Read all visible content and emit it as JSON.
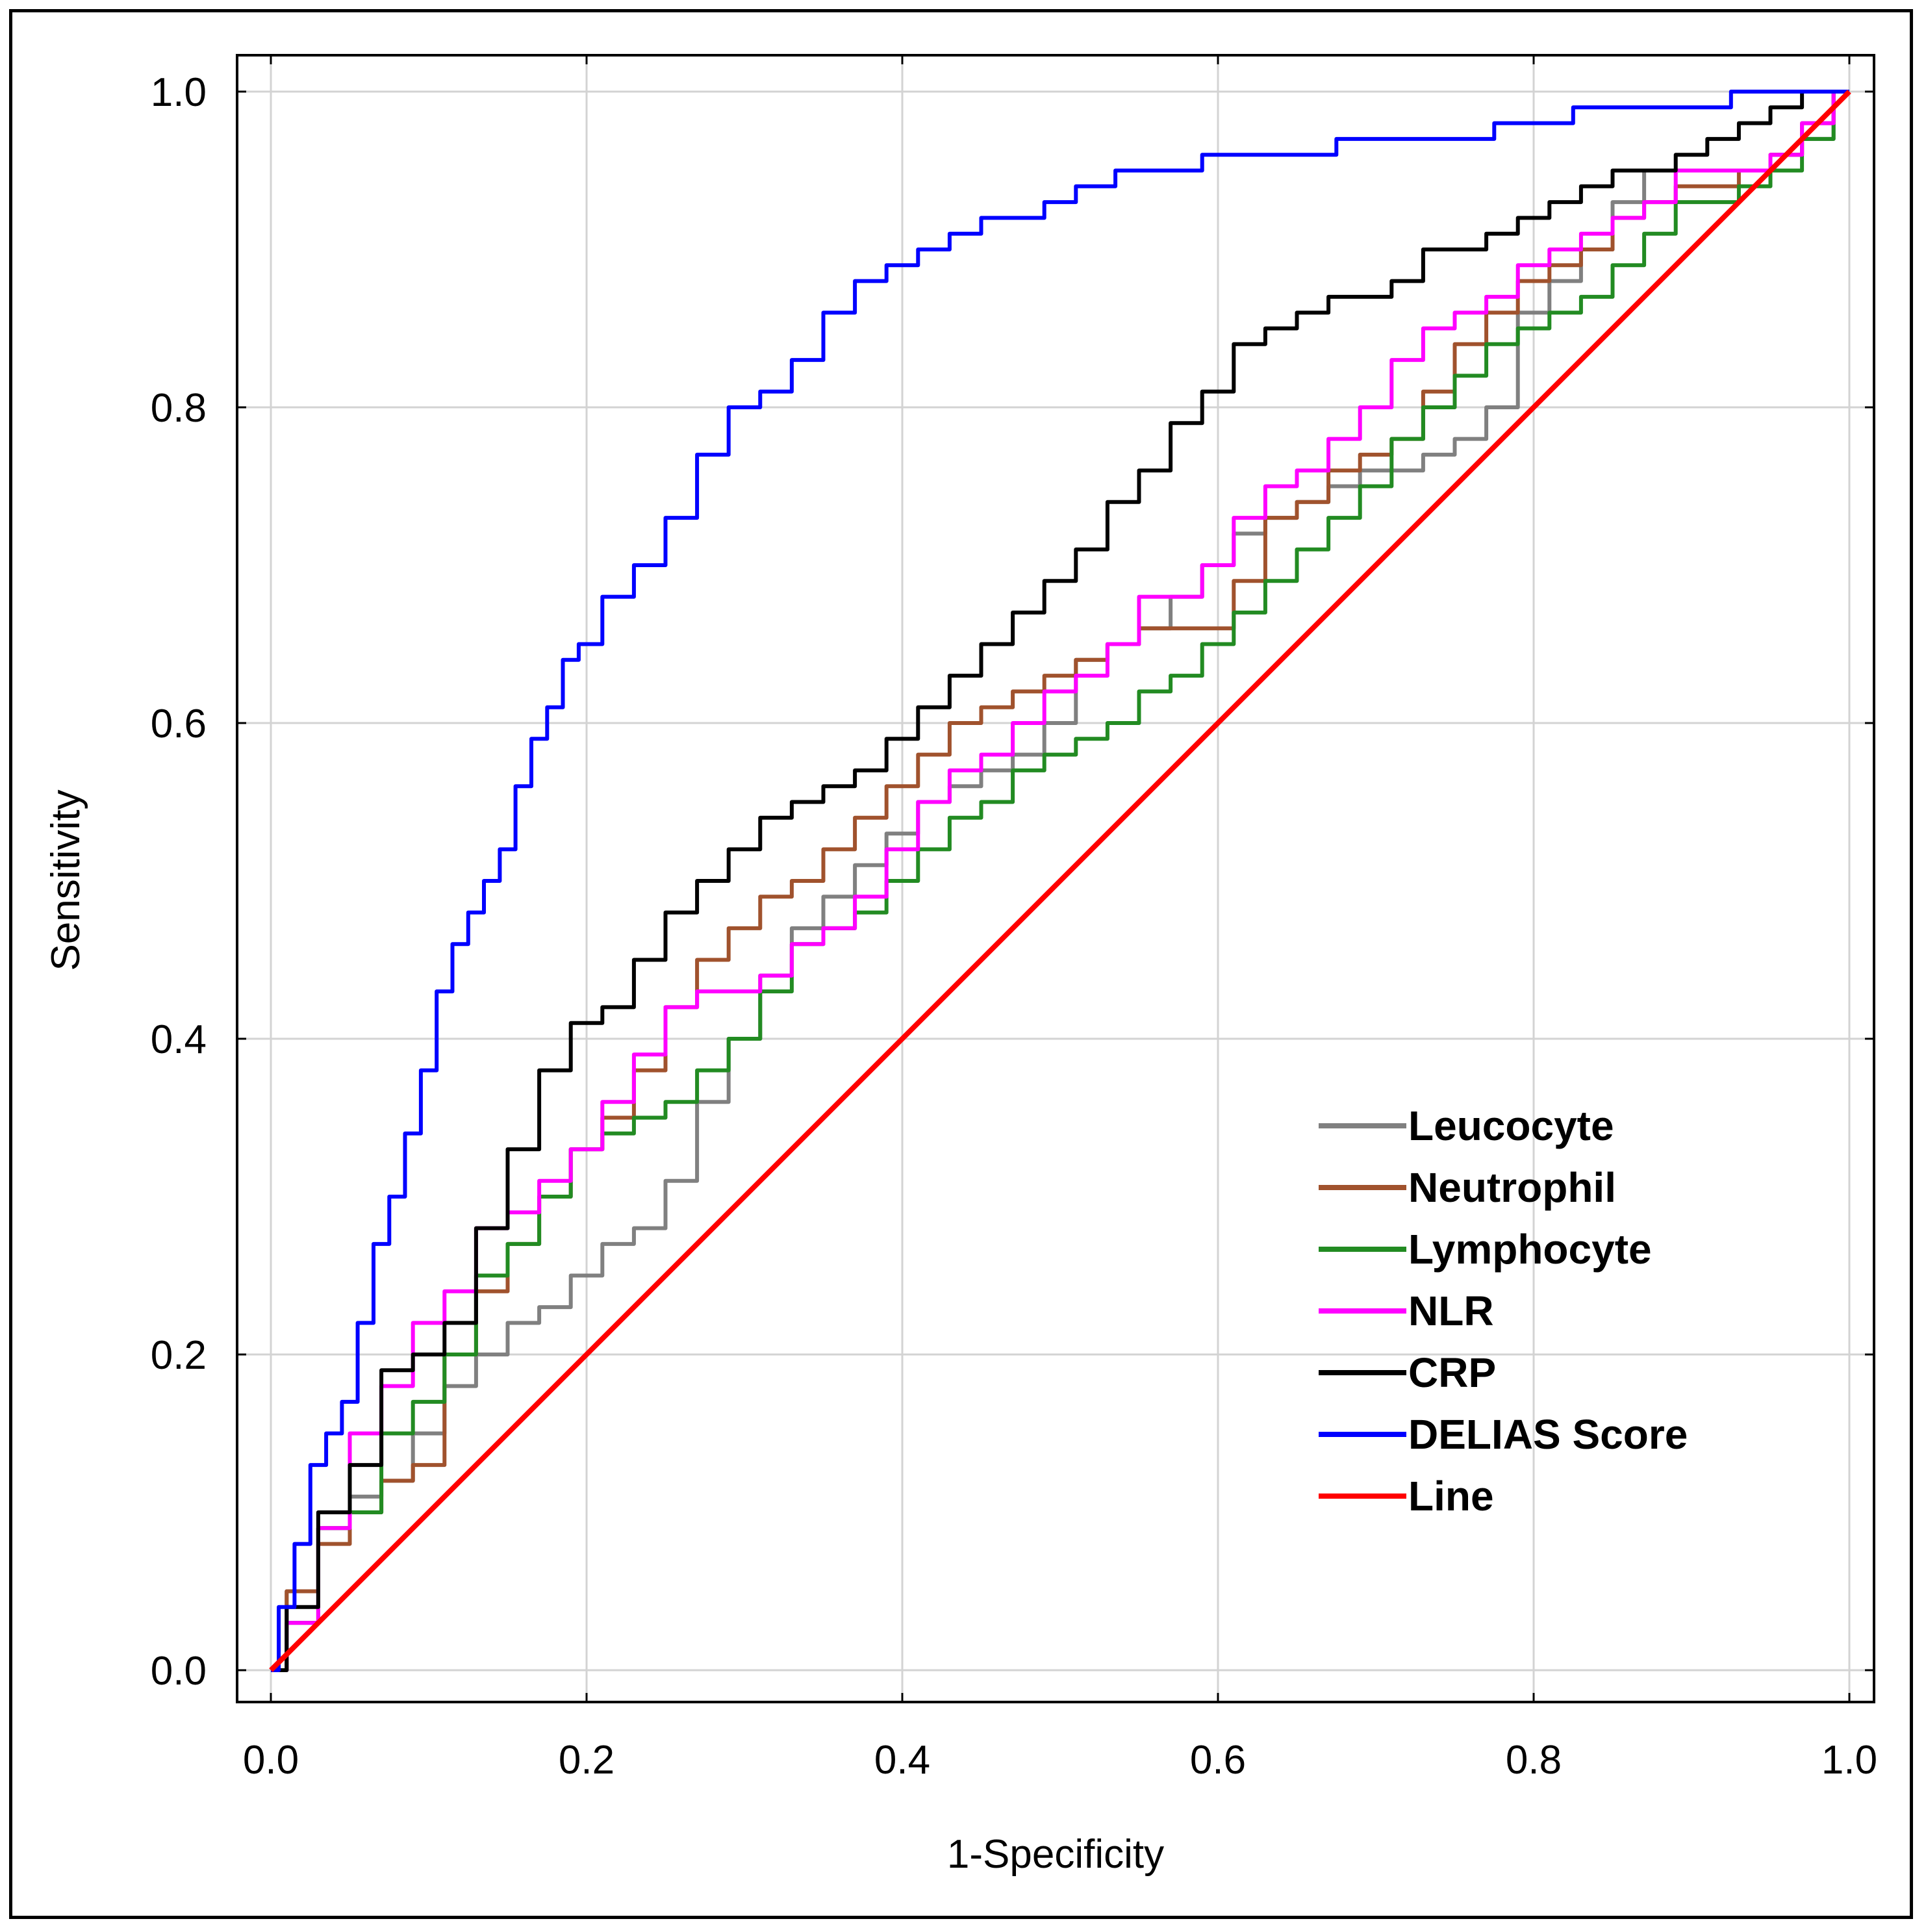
{
  "chart_data": {
    "type": "line",
    "title": "",
    "xlabel": "1-Specificity",
    "ylabel": "Sensitivity",
    "xlim": [
      0,
      1
    ],
    "ylim": [
      0,
      1
    ],
    "grid": true,
    "legend_position": "bottom-right",
    "x_ticks": [
      "0.0",
      "0.2",
      "0.4",
      "0.6",
      "0.8",
      "1.0"
    ],
    "y_ticks": [
      "0.0",
      "0.2",
      "0.4",
      "0.6",
      "0.8",
      "1.0"
    ],
    "series": [
      {
        "name": "Leucocyte",
        "color": "#808080",
        "points": [
          [
            0,
            0
          ],
          [
            0.02,
            0.05
          ],
          [
            0.04,
            0.09
          ],
          [
            0.06,
            0.11
          ],
          [
            0.08,
            0.12
          ],
          [
            0.1,
            0.15
          ],
          [
            0.12,
            0.18
          ],
          [
            0.14,
            0.2
          ],
          [
            0.16,
            0.22
          ],
          [
            0.18,
            0.23
          ],
          [
            0.2,
            0.25
          ],
          [
            0.22,
            0.27
          ],
          [
            0.24,
            0.28
          ],
          [
            0.26,
            0.31
          ],
          [
            0.28,
            0.36
          ],
          [
            0.3,
            0.4
          ],
          [
            0.32,
            0.44
          ],
          [
            0.34,
            0.47
          ],
          [
            0.36,
            0.49
          ],
          [
            0.38,
            0.51
          ],
          [
            0.4,
            0.53
          ],
          [
            0.42,
            0.55
          ],
          [
            0.44,
            0.56
          ],
          [
            0.46,
            0.57
          ],
          [
            0.48,
            0.58
          ],
          [
            0.5,
            0.6
          ],
          [
            0.52,
            0.64
          ],
          [
            0.54,
            0.65
          ],
          [
            0.56,
            0.66
          ],
          [
            0.58,
            0.68
          ],
          [
            0.6,
            0.7
          ],
          [
            0.62,
            0.72
          ],
          [
            0.64,
            0.73
          ],
          [
            0.66,
            0.74
          ],
          [
            0.68,
            0.75
          ],
          [
            0.7,
            0.76
          ],
          [
            0.72,
            0.76
          ],
          [
            0.74,
            0.77
          ],
          [
            0.76,
            0.78
          ],
          [
            0.78,
            0.8
          ],
          [
            0.8,
            0.86
          ],
          [
            0.82,
            0.88
          ],
          [
            0.84,
            0.9
          ],
          [
            0.86,
            0.93
          ],
          [
            0.88,
            0.95
          ],
          [
            0.9,
            0.95
          ],
          [
            0.92,
            0.95
          ],
          [
            0.94,
            0.95
          ],
          [
            0.96,
            0.96
          ],
          [
            0.98,
            0.97
          ],
          [
            1,
            1
          ]
        ]
      },
      {
        "name": "Neutrophil",
        "color": "#a0522d",
        "points": [
          [
            0,
            0
          ],
          [
            0.02,
            0.05
          ],
          [
            0.04,
            0.08
          ],
          [
            0.06,
            0.1
          ],
          [
            0.08,
            0.12
          ],
          [
            0.1,
            0.13
          ],
          [
            0.12,
            0.2
          ],
          [
            0.14,
            0.24
          ],
          [
            0.16,
            0.27
          ],
          [
            0.18,
            0.3
          ],
          [
            0.2,
            0.33
          ],
          [
            0.22,
            0.35
          ],
          [
            0.24,
            0.38
          ],
          [
            0.26,
            0.42
          ],
          [
            0.28,
            0.45
          ],
          [
            0.3,
            0.47
          ],
          [
            0.32,
            0.49
          ],
          [
            0.34,
            0.5
          ],
          [
            0.36,
            0.52
          ],
          [
            0.38,
            0.54
          ],
          [
            0.4,
            0.56
          ],
          [
            0.42,
            0.58
          ],
          [
            0.44,
            0.6
          ],
          [
            0.46,
            0.61
          ],
          [
            0.48,
            0.62
          ],
          [
            0.5,
            0.63
          ],
          [
            0.52,
            0.64
          ],
          [
            0.54,
            0.65
          ],
          [
            0.56,
            0.66
          ],
          [
            0.58,
            0.66
          ],
          [
            0.6,
            0.66
          ],
          [
            0.62,
            0.69
          ],
          [
            0.64,
            0.73
          ],
          [
            0.66,
            0.74
          ],
          [
            0.68,
            0.76
          ],
          [
            0.7,
            0.77
          ],
          [
            0.72,
            0.78
          ],
          [
            0.74,
            0.81
          ],
          [
            0.76,
            0.84
          ],
          [
            0.78,
            0.86
          ],
          [
            0.8,
            0.88
          ],
          [
            0.82,
            0.89
          ],
          [
            0.84,
            0.9
          ],
          [
            0.86,
            0.92
          ],
          [
            0.88,
            0.93
          ],
          [
            0.9,
            0.94
          ],
          [
            0.92,
            0.94
          ],
          [
            0.94,
            0.95
          ],
          [
            0.96,
            0.96
          ],
          [
            0.98,
            0.98
          ],
          [
            1,
            1
          ]
        ]
      },
      {
        "name": "Lymphocyte",
        "color": "#228b22",
        "points": [
          [
            0,
            0
          ],
          [
            0.02,
            0.03
          ],
          [
            0.04,
            0.09
          ],
          [
            0.06,
            0.1
          ],
          [
            0.08,
            0.15
          ],
          [
            0.1,
            0.17
          ],
          [
            0.12,
            0.2
          ],
          [
            0.14,
            0.25
          ],
          [
            0.16,
            0.27
          ],
          [
            0.18,
            0.3
          ],
          [
            0.2,
            0.33
          ],
          [
            0.22,
            0.34
          ],
          [
            0.24,
            0.35
          ],
          [
            0.26,
            0.36
          ],
          [
            0.28,
            0.38
          ],
          [
            0.3,
            0.4
          ],
          [
            0.32,
            0.43
          ],
          [
            0.34,
            0.46
          ],
          [
            0.36,
            0.47
          ],
          [
            0.38,
            0.48
          ],
          [
            0.4,
            0.5
          ],
          [
            0.42,
            0.52
          ],
          [
            0.44,
            0.54
          ],
          [
            0.46,
            0.55
          ],
          [
            0.48,
            0.57
          ],
          [
            0.5,
            0.58
          ],
          [
            0.52,
            0.59
          ],
          [
            0.54,
            0.6
          ],
          [
            0.56,
            0.62
          ],
          [
            0.58,
            0.63
          ],
          [
            0.6,
            0.65
          ],
          [
            0.62,
            0.67
          ],
          [
            0.64,
            0.69
          ],
          [
            0.66,
            0.71
          ],
          [
            0.68,
            0.73
          ],
          [
            0.7,
            0.75
          ],
          [
            0.72,
            0.78
          ],
          [
            0.74,
            0.8
          ],
          [
            0.76,
            0.82
          ],
          [
            0.78,
            0.84
          ],
          [
            0.8,
            0.85
          ],
          [
            0.82,
            0.86
          ],
          [
            0.84,
            0.87
          ],
          [
            0.86,
            0.89
          ],
          [
            0.88,
            0.91
          ],
          [
            0.9,
            0.93
          ],
          [
            0.92,
            0.93
          ],
          [
            0.94,
            0.94
          ],
          [
            0.96,
            0.95
          ],
          [
            0.98,
            0.97
          ],
          [
            1,
            1
          ]
        ]
      },
      {
        "name": "NLR",
        "color": "#ff00ff",
        "points": [
          [
            0,
            0
          ],
          [
            0.02,
            0.03
          ],
          [
            0.04,
            0.09
          ],
          [
            0.06,
            0.15
          ],
          [
            0.08,
            0.18
          ],
          [
            0.1,
            0.22
          ],
          [
            0.12,
            0.24
          ],
          [
            0.14,
            0.28
          ],
          [
            0.16,
            0.29
          ],
          [
            0.18,
            0.31
          ],
          [
            0.2,
            0.33
          ],
          [
            0.22,
            0.36
          ],
          [
            0.24,
            0.39
          ],
          [
            0.26,
            0.42
          ],
          [
            0.28,
            0.43
          ],
          [
            0.3,
            0.43
          ],
          [
            0.32,
            0.44
          ],
          [
            0.34,
            0.46
          ],
          [
            0.36,
            0.47
          ],
          [
            0.38,
            0.49
          ],
          [
            0.4,
            0.52
          ],
          [
            0.42,
            0.55
          ],
          [
            0.44,
            0.57
          ],
          [
            0.46,
            0.58
          ],
          [
            0.48,
            0.6
          ],
          [
            0.5,
            0.62
          ],
          [
            0.52,
            0.63
          ],
          [
            0.54,
            0.65
          ],
          [
            0.56,
            0.68
          ],
          [
            0.58,
            0.68
          ],
          [
            0.6,
            0.7
          ],
          [
            0.62,
            0.73
          ],
          [
            0.64,
            0.75
          ],
          [
            0.66,
            0.76
          ],
          [
            0.68,
            0.78
          ],
          [
            0.7,
            0.8
          ],
          [
            0.72,
            0.83
          ],
          [
            0.74,
            0.85
          ],
          [
            0.76,
            0.86
          ],
          [
            0.78,
            0.87
          ],
          [
            0.8,
            0.89
          ],
          [
            0.82,
            0.9
          ],
          [
            0.84,
            0.91
          ],
          [
            0.86,
            0.92
          ],
          [
            0.88,
            0.93
          ],
          [
            0.9,
            0.95
          ],
          [
            0.92,
            0.95
          ],
          [
            0.94,
            0.95
          ],
          [
            0.96,
            0.96
          ],
          [
            0.98,
            0.98
          ],
          [
            1,
            1
          ]
        ]
      },
      {
        "name": "CRP",
        "color": "#000000",
        "points": [
          [
            0,
            0
          ],
          [
            0.02,
            0.04
          ],
          [
            0.04,
            0.1
          ],
          [
            0.06,
            0.13
          ],
          [
            0.08,
            0.19
          ],
          [
            0.1,
            0.2
          ],
          [
            0.12,
            0.22
          ],
          [
            0.14,
            0.28
          ],
          [
            0.16,
            0.33
          ],
          [
            0.18,
            0.38
          ],
          [
            0.2,
            0.41
          ],
          [
            0.22,
            0.42
          ],
          [
            0.24,
            0.45
          ],
          [
            0.26,
            0.48
          ],
          [
            0.28,
            0.5
          ],
          [
            0.3,
            0.52
          ],
          [
            0.32,
            0.54
          ],
          [
            0.34,
            0.55
          ],
          [
            0.36,
            0.56
          ],
          [
            0.38,
            0.57
          ],
          [
            0.4,
            0.59
          ],
          [
            0.42,
            0.61
          ],
          [
            0.44,
            0.63
          ],
          [
            0.46,
            0.65
          ],
          [
            0.48,
            0.67
          ],
          [
            0.5,
            0.69
          ],
          [
            0.52,
            0.71
          ],
          [
            0.54,
            0.74
          ],
          [
            0.56,
            0.76
          ],
          [
            0.58,
            0.79
          ],
          [
            0.6,
            0.81
          ],
          [
            0.62,
            0.84
          ],
          [
            0.64,
            0.85
          ],
          [
            0.66,
            0.86
          ],
          [
            0.68,
            0.87
          ],
          [
            0.7,
            0.87
          ],
          [
            0.72,
            0.88
          ],
          [
            0.74,
            0.9
          ],
          [
            0.76,
            0.9
          ],
          [
            0.78,
            0.91
          ],
          [
            0.8,
            0.92
          ],
          [
            0.82,
            0.93
          ],
          [
            0.84,
            0.94
          ],
          [
            0.86,
            0.95
          ],
          [
            0.88,
            0.95
          ],
          [
            0.9,
            0.96
          ],
          [
            0.92,
            0.97
          ],
          [
            0.94,
            0.98
          ],
          [
            0.96,
            0.99
          ],
          [
            0.98,
            1.0
          ],
          [
            1,
            1
          ]
        ]
      },
      {
        "name": "DELIAS Score",
        "color": "#0000ff",
        "points": [
          [
            0,
            0
          ],
          [
            0.01,
            0.04
          ],
          [
            0.02,
            0.08
          ],
          [
            0.03,
            0.13
          ],
          [
            0.04,
            0.15
          ],
          [
            0.05,
            0.17
          ],
          [
            0.06,
            0.22
          ],
          [
            0.07,
            0.27
          ],
          [
            0.08,
            0.3
          ],
          [
            0.09,
            0.34
          ],
          [
            0.1,
            0.38
          ],
          [
            0.11,
            0.43
          ],
          [
            0.12,
            0.46
          ],
          [
            0.13,
            0.48
          ],
          [
            0.14,
            0.5
          ],
          [
            0.15,
            0.52
          ],
          [
            0.16,
            0.56
          ],
          [
            0.17,
            0.59
          ],
          [
            0.18,
            0.61
          ],
          [
            0.19,
            0.64
          ],
          [
            0.2,
            0.65
          ],
          [
            0.22,
            0.68
          ],
          [
            0.24,
            0.7
          ],
          [
            0.26,
            0.73
          ],
          [
            0.28,
            0.77
          ],
          [
            0.3,
            0.8
          ],
          [
            0.32,
            0.81
          ],
          [
            0.34,
            0.83
          ],
          [
            0.36,
            0.86
          ],
          [
            0.38,
            0.88
          ],
          [
            0.4,
            0.89
          ],
          [
            0.42,
            0.9
          ],
          [
            0.44,
            0.91
          ],
          [
            0.46,
            0.92
          ],
          [
            0.48,
            0.92
          ],
          [
            0.5,
            0.93
          ],
          [
            0.52,
            0.94
          ],
          [
            0.55,
            0.95
          ],
          [
            0.58,
            0.95
          ],
          [
            0.6,
            0.96
          ],
          [
            0.65,
            0.96
          ],
          [
            0.7,
            0.97
          ],
          [
            0.75,
            0.97
          ],
          [
            0.8,
            0.98
          ],
          [
            0.85,
            0.99
          ],
          [
            0.9,
            0.99
          ],
          [
            0.95,
            1.0
          ],
          [
            1,
            1
          ]
        ]
      },
      {
        "name": "Line",
        "color": "#ff0000",
        "points": [
          [
            0,
            0
          ],
          [
            1,
            1
          ]
        ]
      }
    ]
  }
}
